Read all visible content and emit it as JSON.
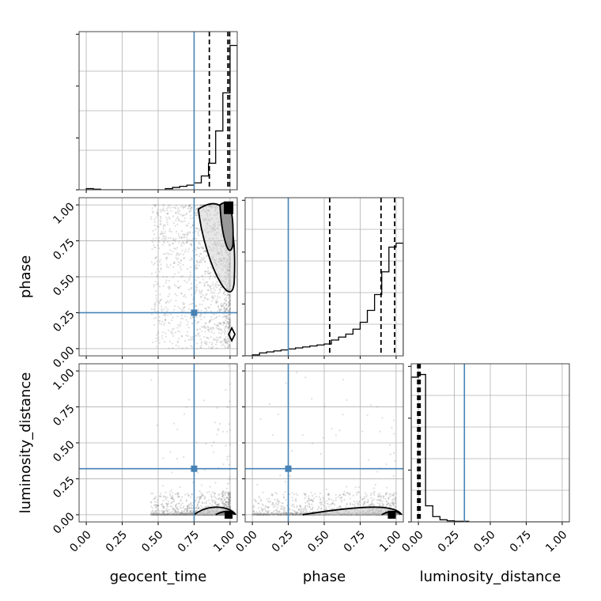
{
  "chart_data": {
    "type": "corner",
    "parameters": [
      "geocent_time",
      "phase",
      "luminosity_distance"
    ],
    "axis_range": [
      -0.05,
      1.05
    ],
    "ticks": [
      0.0,
      0.25,
      0.5,
      0.75,
      1.0
    ],
    "tick_labels": [
      "0.00",
      "0.25",
      "0.50",
      "0.75",
      "1.00"
    ],
    "grid": true,
    "truth": {
      "geocent_time": 0.75,
      "phase": 0.25,
      "luminosity_distance": 0.32
    },
    "colors": {
      "truth": "#4682b4",
      "hist": "#000000",
      "scatter": "#808080",
      "grid": "#b0b0b0"
    },
    "marginals": [
      {
        "parameter": "geocent_time",
        "bin_edges": [
          0.0,
          0.05,
          0.1,
          0.15,
          0.2,
          0.25,
          0.3,
          0.35,
          0.4,
          0.45,
          0.5,
          0.55,
          0.6,
          0.65,
          0.7,
          0.75,
          0.8,
          0.85,
          0.9,
          0.95,
          1.0,
          1.05
        ],
        "counts": [
          1,
          0.5,
          0,
          0,
          0,
          0,
          0,
          0,
          0,
          0,
          0,
          1,
          2,
          3,
          4,
          6,
          12,
          23,
          51,
          84,
          125
        ],
        "ymax": 137,
        "quantile_lines": [
          0.856,
          0.985,
          0.997
        ]
      },
      {
        "parameter": "phase",
        "bin_edges": [
          -0.05,
          0.0,
          0.05,
          0.1,
          0.15,
          0.2,
          0.25,
          0.3,
          0.35,
          0.4,
          0.45,
          0.5,
          0.55,
          0.6,
          0.65,
          0.7,
          0.75,
          0.8,
          0.85,
          0.9,
          0.95,
          1.0,
          1.05
        ],
        "counts": [
          0,
          1,
          3,
          4,
          5,
          6,
          7,
          8,
          9,
          10,
          11,
          12,
          16,
          19,
          22,
          27,
          34,
          46,
          62,
          85,
          110,
          114
        ],
        "ymax": 160,
        "quantile_lines": [
          0.538,
          0.895,
          0.99
        ]
      },
      {
        "parameter": "luminosity_distance",
        "bin_edges": [
          -0.05,
          0.0,
          0.05,
          0.1,
          0.15,
          0.2,
          0.25,
          0.3,
          0.35,
          0.4,
          0.45,
          0.5,
          0.55,
          0.6,
          0.65,
          0.7,
          0.75,
          0.8,
          0.85,
          0.9,
          0.95,
          1.0,
          1.05
        ],
        "counts": [
          270,
          275,
          30,
          10,
          4,
          2,
          1,
          1,
          0,
          0,
          0,
          0,
          0,
          0,
          0,
          0,
          0,
          0,
          0,
          0,
          0,
          0
        ],
        "ymax": 295,
        "quantile_lines": [
          -0.005,
          0.003,
          0.012
        ]
      }
    ],
    "pairs": [
      {
        "x": "geocent_time",
        "y": "phase",
        "density_peak": [
          0.99,
          0.98
        ]
      },
      {
        "x": "geocent_time",
        "y": "luminosity_distance",
        "density_peak": [
          0.99,
          0.0
        ]
      },
      {
        "x": "phase",
        "y": "luminosity_distance",
        "density_peak": [
          0.97,
          0.0
        ]
      }
    ]
  }
}
